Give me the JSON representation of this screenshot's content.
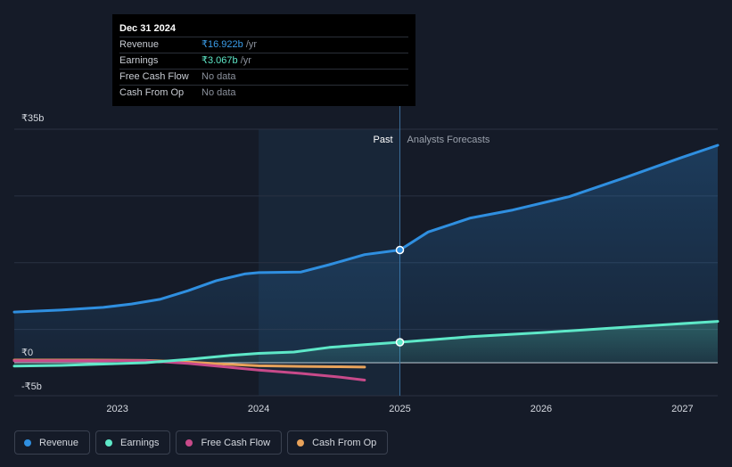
{
  "tooltip": {
    "date": "Dec 31 2024",
    "rows": [
      {
        "label": "Revenue",
        "value": "₹16.922b",
        "unit": " /yr"
      },
      {
        "label": "Earnings",
        "value": "₹3.067b",
        "unit": " /yr"
      },
      {
        "label": "Free Cash Flow",
        "value": "No data"
      },
      {
        "label": "Cash From Op",
        "value": "No data"
      }
    ]
  },
  "legend": [
    {
      "label": "Revenue",
      "color": "#2f8fe0"
    },
    {
      "label": "Earnings",
      "color": "#5ee8c8"
    },
    {
      "label": "Free Cash Flow",
      "color": "#c84a8a"
    },
    {
      "label": "Cash From Op",
      "color": "#e8a25a"
    }
  ],
  "chart_data": {
    "type": "line",
    "title": "",
    "xlabel": "",
    "ylabel": "",
    "xlim": [
      2022.27,
      2027.25
    ],
    "ylim": [
      -5,
      35
    ],
    "y_tick_labels": [
      {
        "value": 35,
        "label": "₹35b"
      },
      {
        "value": 0,
        "label": "₹0"
      },
      {
        "value": -5,
        "label": "-₹5b"
      }
    ],
    "x_ticks": [
      2023,
      2024,
      2025,
      2026,
      2027
    ],
    "x_tick_labels": [
      "2023",
      "2024",
      "2025",
      "2026",
      "2027"
    ],
    "divider_x": 2025.0,
    "highlight_start_x": 2024.0,
    "past_label": "Past",
    "forecast_label": "Analysts Forecasts",
    "series": [
      {
        "name": "Revenue",
        "color": "#2f8fe0",
        "area": true,
        "marker_x": 2025.0,
        "points": [
          [
            2022.27,
            7.6
          ],
          [
            2022.6,
            7.9
          ],
          [
            2022.9,
            8.3
          ],
          [
            2023.1,
            8.8
          ],
          [
            2023.3,
            9.5
          ],
          [
            2023.5,
            10.8
          ],
          [
            2023.7,
            12.3
          ],
          [
            2023.9,
            13.3
          ],
          [
            2024.0,
            13.5
          ],
          [
            2024.3,
            13.6
          ],
          [
            2024.5,
            14.7
          ],
          [
            2024.75,
            16.2
          ],
          [
            2025.0,
            16.9
          ],
          [
            2025.2,
            19.6
          ],
          [
            2025.5,
            21.7
          ],
          [
            2025.8,
            22.9
          ],
          [
            2026.2,
            24.9
          ],
          [
            2026.6,
            27.8
          ],
          [
            2027.0,
            30.8
          ],
          [
            2027.25,
            32.6
          ]
        ]
      },
      {
        "name": "Earnings",
        "color": "#5ee8c8",
        "area": true,
        "marker_x": 2025.0,
        "points": [
          [
            2022.27,
            -0.5
          ],
          [
            2022.6,
            -0.4
          ],
          [
            2022.9,
            -0.2
          ],
          [
            2023.2,
            0.0
          ],
          [
            2023.5,
            0.5
          ],
          [
            2023.8,
            1.1
          ],
          [
            2024.0,
            1.4
          ],
          [
            2024.25,
            1.6
          ],
          [
            2024.5,
            2.3
          ],
          [
            2024.75,
            2.7
          ],
          [
            2025.0,
            3.07
          ],
          [
            2025.5,
            3.9
          ],
          [
            2026.0,
            4.5
          ],
          [
            2026.5,
            5.2
          ],
          [
            2027.25,
            6.2
          ]
        ]
      },
      {
        "name": "Free Cash Flow",
        "color": "#c84a8a",
        "area": false,
        "points": [
          [
            2022.27,
            0.3
          ],
          [
            2022.8,
            0.3
          ],
          [
            2023.2,
            0.3
          ],
          [
            2023.5,
            -0.1
          ],
          [
            2023.8,
            -0.7
          ],
          [
            2024.0,
            -1.1
          ],
          [
            2024.3,
            -1.6
          ],
          [
            2024.55,
            -2.1
          ],
          [
            2024.75,
            -2.6
          ]
        ]
      },
      {
        "name": "Cash From Op",
        "color": "#e8a25a",
        "area": false,
        "points": [
          [
            2022.27,
            0.4
          ],
          [
            2022.8,
            0.4
          ],
          [
            2023.2,
            0.35
          ],
          [
            2023.5,
            0.1
          ],
          [
            2023.8,
            -0.25
          ],
          [
            2024.0,
            -0.45
          ],
          [
            2024.3,
            -0.55
          ],
          [
            2024.55,
            -0.6
          ],
          [
            2024.75,
            -0.65
          ]
        ]
      }
    ]
  }
}
